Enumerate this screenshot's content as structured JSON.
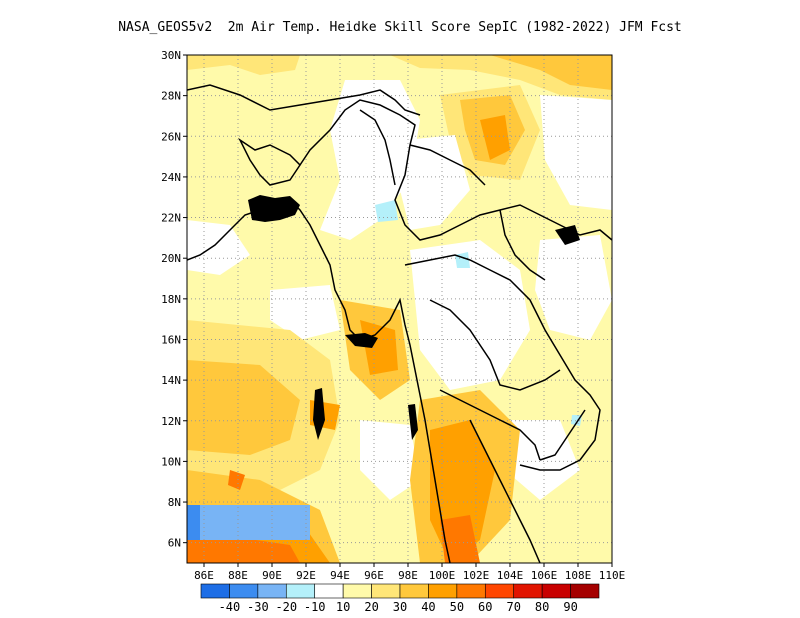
{
  "title": "NASA_GEOS5v2  2m Air Temp. Heidke Skill Score SepIC (1982-2022) JFM Fcst",
  "map": {
    "lon_range": [
      85,
      110
    ],
    "lat_range": [
      5,
      30
    ],
    "x_ticks": [
      "86E",
      "88E",
      "90E",
      "92E",
      "94E",
      "96E",
      "98E",
      "100E",
      "102E",
      "104E",
      "106E",
      "108E",
      "110E"
    ],
    "y_ticks": [
      "6N",
      "8N",
      "10N",
      "12N",
      "14N",
      "16N",
      "18N",
      "20N",
      "22N",
      "24N",
      "26N",
      "28N",
      "30N"
    ],
    "grid": "dotted"
  },
  "colorbar": {
    "colors": [
      "#1e6ee6",
      "#3c8cf0",
      "#78b4f5",
      "#b4f0fa",
      "#ffffff",
      "#fffaaa",
      "#ffe678",
      "#ffc83c",
      "#ffa000",
      "#ff7800",
      "#ff4600",
      "#e11400",
      "#c80000",
      "#a50000"
    ],
    "labels": [
      "-40",
      "-30",
      "-20",
      "-10",
      "10",
      "20",
      "30",
      "40",
      "50",
      "60",
      "70",
      "80",
      "90"
    ]
  }
}
